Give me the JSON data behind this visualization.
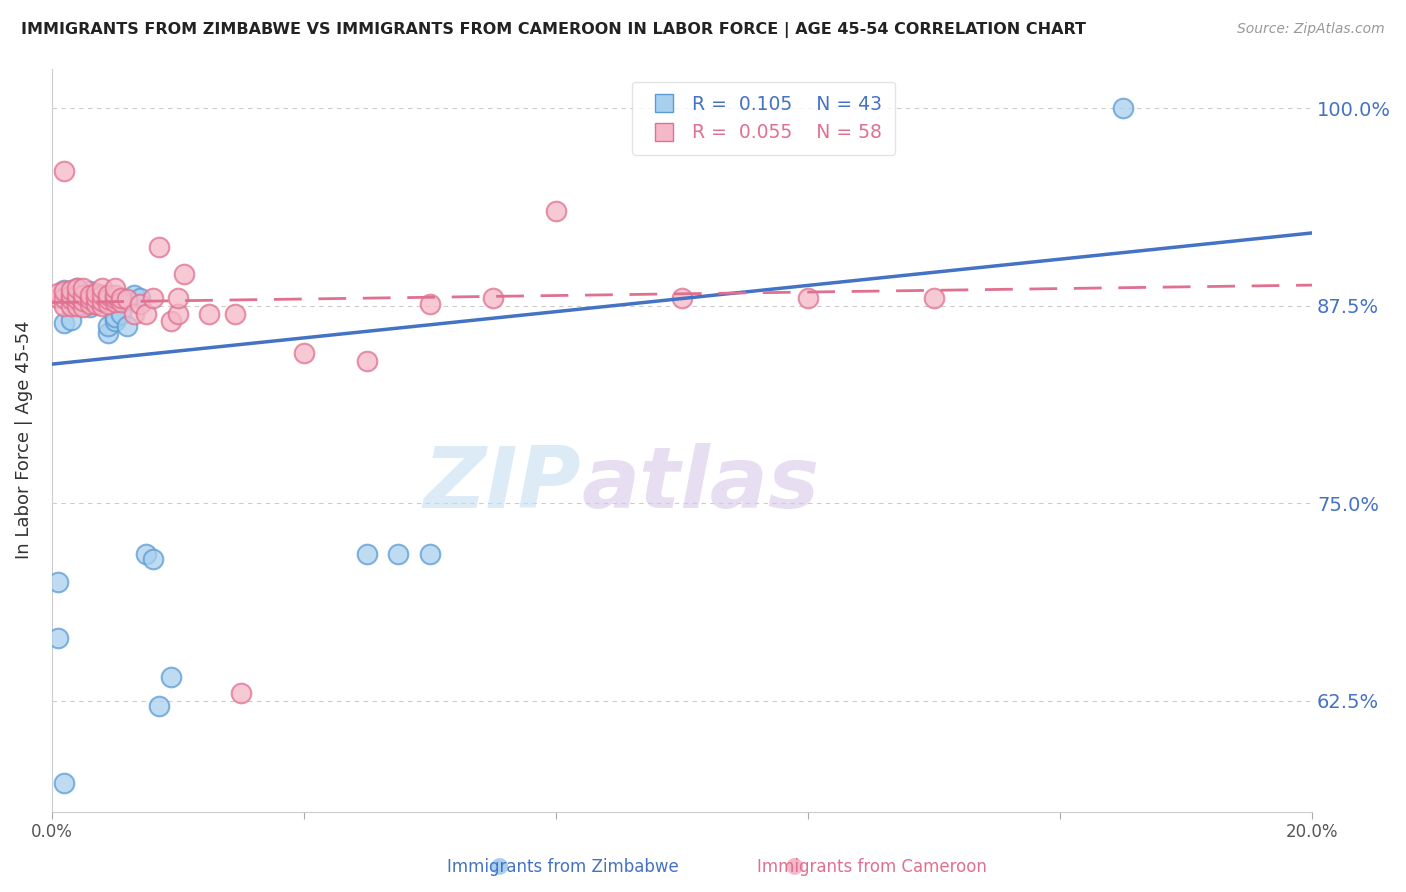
{
  "title": "IMMIGRANTS FROM ZIMBABWE VS IMMIGRANTS FROM CAMEROON IN LABOR FORCE | AGE 45-54 CORRELATION CHART",
  "source": "Source: ZipAtlas.com",
  "ylabel": "In Labor Force | Age 45-54",
  "yticks": [
    0.625,
    0.75,
    0.875,
    1.0
  ],
  "ytick_labels": [
    "62.5%",
    "75.0%",
    "87.5%",
    "100.0%"
  ],
  "xlim": [
    0.0,
    0.2
  ],
  "ylim": [
    0.555,
    1.025
  ],
  "legend_r1": "R =  0.105",
  "legend_n1": "N = 43",
  "legend_r2": "R =  0.055",
  "legend_n2": "N = 58",
  "color_zimbabwe_face": "#a8d0ee",
  "color_zimbabwe_edge": "#5b9bd5",
  "color_cameroon_face": "#f4b8c8",
  "color_cameroon_edge": "#e07090",
  "color_line_zimbabwe": "#4472c4",
  "color_line_cameroon": "#e07090",
  "watermark_zip": "ZIP",
  "watermark_atlas": "atlas",
  "zimbabwe_x": [
    0.001,
    0.002,
    0.002,
    0.002,
    0.003,
    0.003,
    0.003,
    0.003,
    0.004,
    0.004,
    0.004,
    0.004,
    0.005,
    0.005,
    0.005,
    0.005,
    0.006,
    0.006,
    0.006,
    0.006,
    0.007,
    0.007,
    0.008,
    0.008,
    0.009,
    0.009,
    0.01,
    0.01,
    0.011,
    0.012,
    0.013,
    0.014,
    0.015,
    0.016,
    0.017,
    0.019,
    0.05,
    0.055,
    0.06,
    0.002,
    0.003,
    0.17,
    0.001
  ],
  "zimbabwe_y": [
    0.7,
    0.883,
    0.885,
    0.573,
    0.88,
    0.882,
    0.884,
    0.875,
    0.878,
    0.882,
    0.885,
    0.886,
    0.875,
    0.878,
    0.882,
    0.876,
    0.874,
    0.877,
    0.88,
    0.884,
    0.876,
    0.88,
    0.877,
    0.882,
    0.858,
    0.862,
    0.865,
    0.868,
    0.87,
    0.862,
    0.882,
    0.88,
    0.718,
    0.715,
    0.622,
    0.64,
    0.718,
    0.718,
    0.718,
    0.864,
    0.866,
    1.0,
    0.665
  ],
  "cameroon_x": [
    0.001,
    0.001,
    0.002,
    0.002,
    0.002,
    0.003,
    0.003,
    0.003,
    0.003,
    0.004,
    0.004,
    0.004,
    0.004,
    0.005,
    0.005,
    0.005,
    0.005,
    0.006,
    0.006,
    0.006,
    0.007,
    0.007,
    0.007,
    0.008,
    0.008,
    0.008,
    0.008,
    0.009,
    0.009,
    0.009,
    0.01,
    0.01,
    0.01,
    0.01,
    0.011,
    0.011,
    0.012,
    0.013,
    0.014,
    0.015,
    0.016,
    0.017,
    0.019,
    0.02,
    0.02,
    0.021,
    0.025,
    0.029,
    0.04,
    0.05,
    0.06,
    0.07,
    0.08,
    0.1,
    0.14,
    0.002,
    0.03,
    0.12
  ],
  "cameroon_y": [
    0.88,
    0.883,
    0.875,
    0.88,
    0.884,
    0.875,
    0.879,
    0.882,
    0.885,
    0.875,
    0.879,
    0.882,
    0.886,
    0.874,
    0.878,
    0.882,
    0.886,
    0.876,
    0.879,
    0.882,
    0.876,
    0.88,
    0.883,
    0.875,
    0.878,
    0.882,
    0.886,
    0.876,
    0.879,
    0.882,
    0.877,
    0.88,
    0.882,
    0.886,
    0.877,
    0.88,
    0.879,
    0.87,
    0.876,
    0.87,
    0.88,
    0.912,
    0.865,
    0.87,
    0.88,
    0.895,
    0.87,
    0.87,
    0.845,
    0.84,
    0.876,
    0.88,
    0.935,
    0.88,
    0.88,
    0.96,
    0.63,
    0.88
  ],
  "zim_line_x": [
    0.0,
    0.2
  ],
  "zim_line_y": [
    0.838,
    0.921
  ],
  "cam_line_x": [
    0.0,
    0.2
  ],
  "cam_line_y": [
    0.877,
    0.888
  ]
}
